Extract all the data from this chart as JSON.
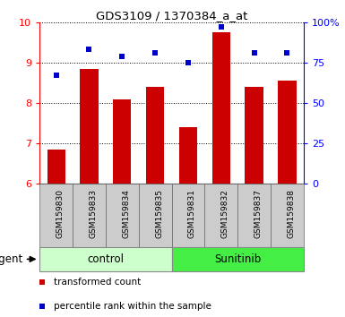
{
  "title": "GDS3109 / 1370384_a_at",
  "samples": [
    "GSM159830",
    "GSM159833",
    "GSM159834",
    "GSM159835",
    "GSM159831",
    "GSM159832",
    "GSM159837",
    "GSM159838"
  ],
  "bar_values": [
    6.85,
    8.85,
    8.1,
    8.4,
    7.4,
    9.75,
    8.4,
    8.55
  ],
  "scatter_values": [
    67,
    83,
    79,
    81,
    75,
    97,
    81,
    81
  ],
  "ylim_left": [
    6,
    10
  ],
  "ylim_right": [
    0,
    100
  ],
  "yticks_left": [
    6,
    7,
    8,
    9,
    10
  ],
  "yticks_right": [
    0,
    25,
    50,
    75,
    100
  ],
  "yticklabels_right": [
    "0",
    "25",
    "50",
    "75",
    "100%"
  ],
  "bar_color": "#cc0000",
  "scatter_color": "#0000cc",
  "bar_width": 0.55,
  "groups": [
    {
      "label": "control",
      "n": 4,
      "color": "#ccffcc",
      "border": "#888888"
    },
    {
      "label": "Sunitinib",
      "n": 4,
      "color": "#44ee44",
      "border": "#888888"
    }
  ],
  "agent_label": "agent",
  "legend_items": [
    {
      "color": "#cc0000",
      "marker": "s",
      "label": "transformed count"
    },
    {
      "color": "#0000cc",
      "marker": "s",
      "label": "percentile rank within the sample"
    }
  ],
  "grid_color": "black",
  "tick_label_bg": "#cccccc",
  "base_value": 6
}
